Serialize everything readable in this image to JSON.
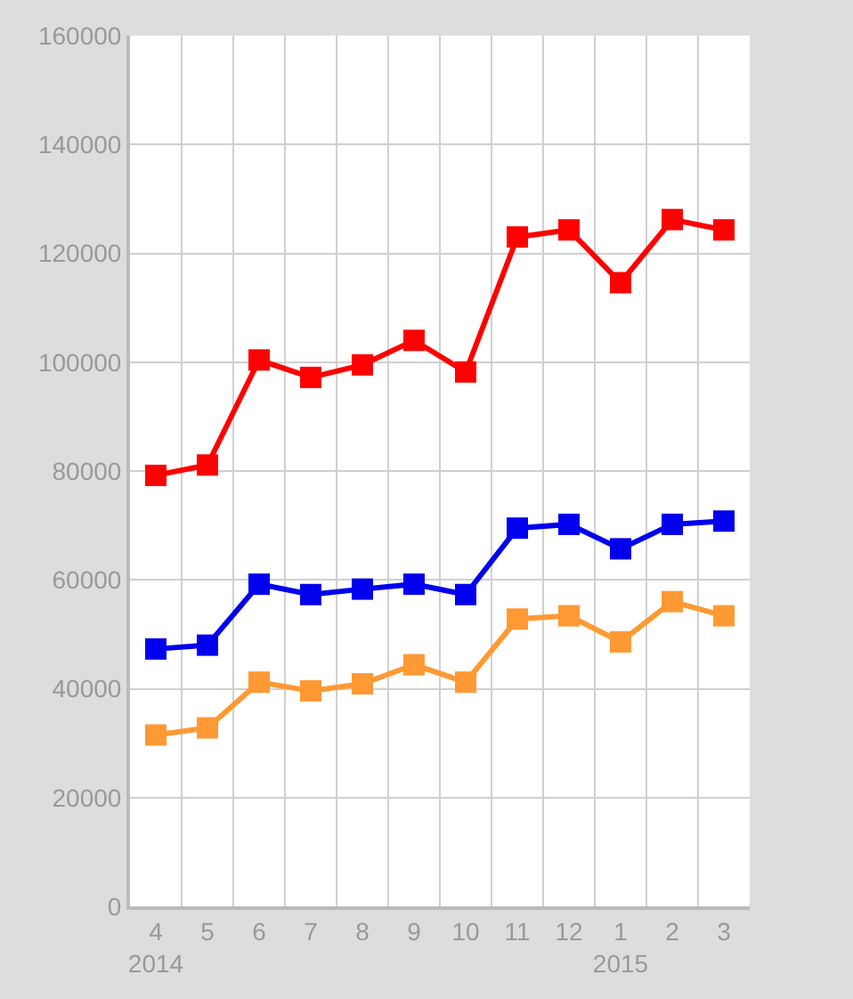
{
  "chart_data": {
    "type": "line",
    "categories": [
      "4\n2014",
      "5",
      "6",
      "7",
      "8",
      "9",
      "10",
      "11",
      "12",
      "1\n2015",
      "2",
      "3"
    ],
    "series": [
      {
        "color": "#ff0000",
        "values": [
          79200,
          81100,
          100400,
          97200,
          99500,
          104000,
          98200,
          123000,
          124300,
          114600,
          126200,
          124300
        ]
      },
      {
        "color": "#0000ee",
        "values": [
          47300,
          48000,
          59200,
          57300,
          58300,
          59200,
          57300,
          69500,
          70200,
          65700,
          70200,
          70800
        ]
      },
      {
        "color": "#ff9933",
        "values": [
          31500,
          32800,
          41200,
          39600,
          40900,
          44400,
          41200,
          52800,
          53400,
          48600,
          56000,
          53400
        ]
      }
    ],
    "ylim": [
      0,
      160000
    ],
    "yticks": [
      0,
      20000,
      40000,
      60000,
      80000,
      100000,
      120000,
      140000,
      160000
    ],
    "grid": true,
    "legend": false,
    "marker": "square",
    "line_style": "solid"
  }
}
